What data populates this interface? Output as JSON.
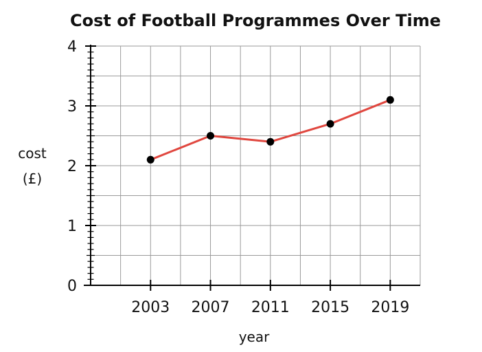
{
  "chart_data": {
    "type": "line",
    "title": "Cost of Football Programmes Over Time",
    "xlabel": "year",
    "ylabel_lines": [
      "cost",
      "(£)"
    ],
    "x_tick_labels": [
      "2003",
      "2007",
      "2011",
      "2015",
      "2019"
    ],
    "y_tick_labels": [
      "0",
      "1",
      "2",
      "3",
      "4"
    ],
    "ylim": [
      0,
      4
    ],
    "grid": true,
    "series": [
      {
        "x": [
          "2003",
          "2007",
          "2011",
          "2015",
          "2019"
        ],
        "values": [
          2.1,
          2.5,
          2.4,
          2.7,
          3.1
        ]
      }
    ],
    "colors": {
      "line": "#e0473f",
      "point": "#000000",
      "grid": "#9a9a9a",
      "axis": "#000000"
    }
  }
}
